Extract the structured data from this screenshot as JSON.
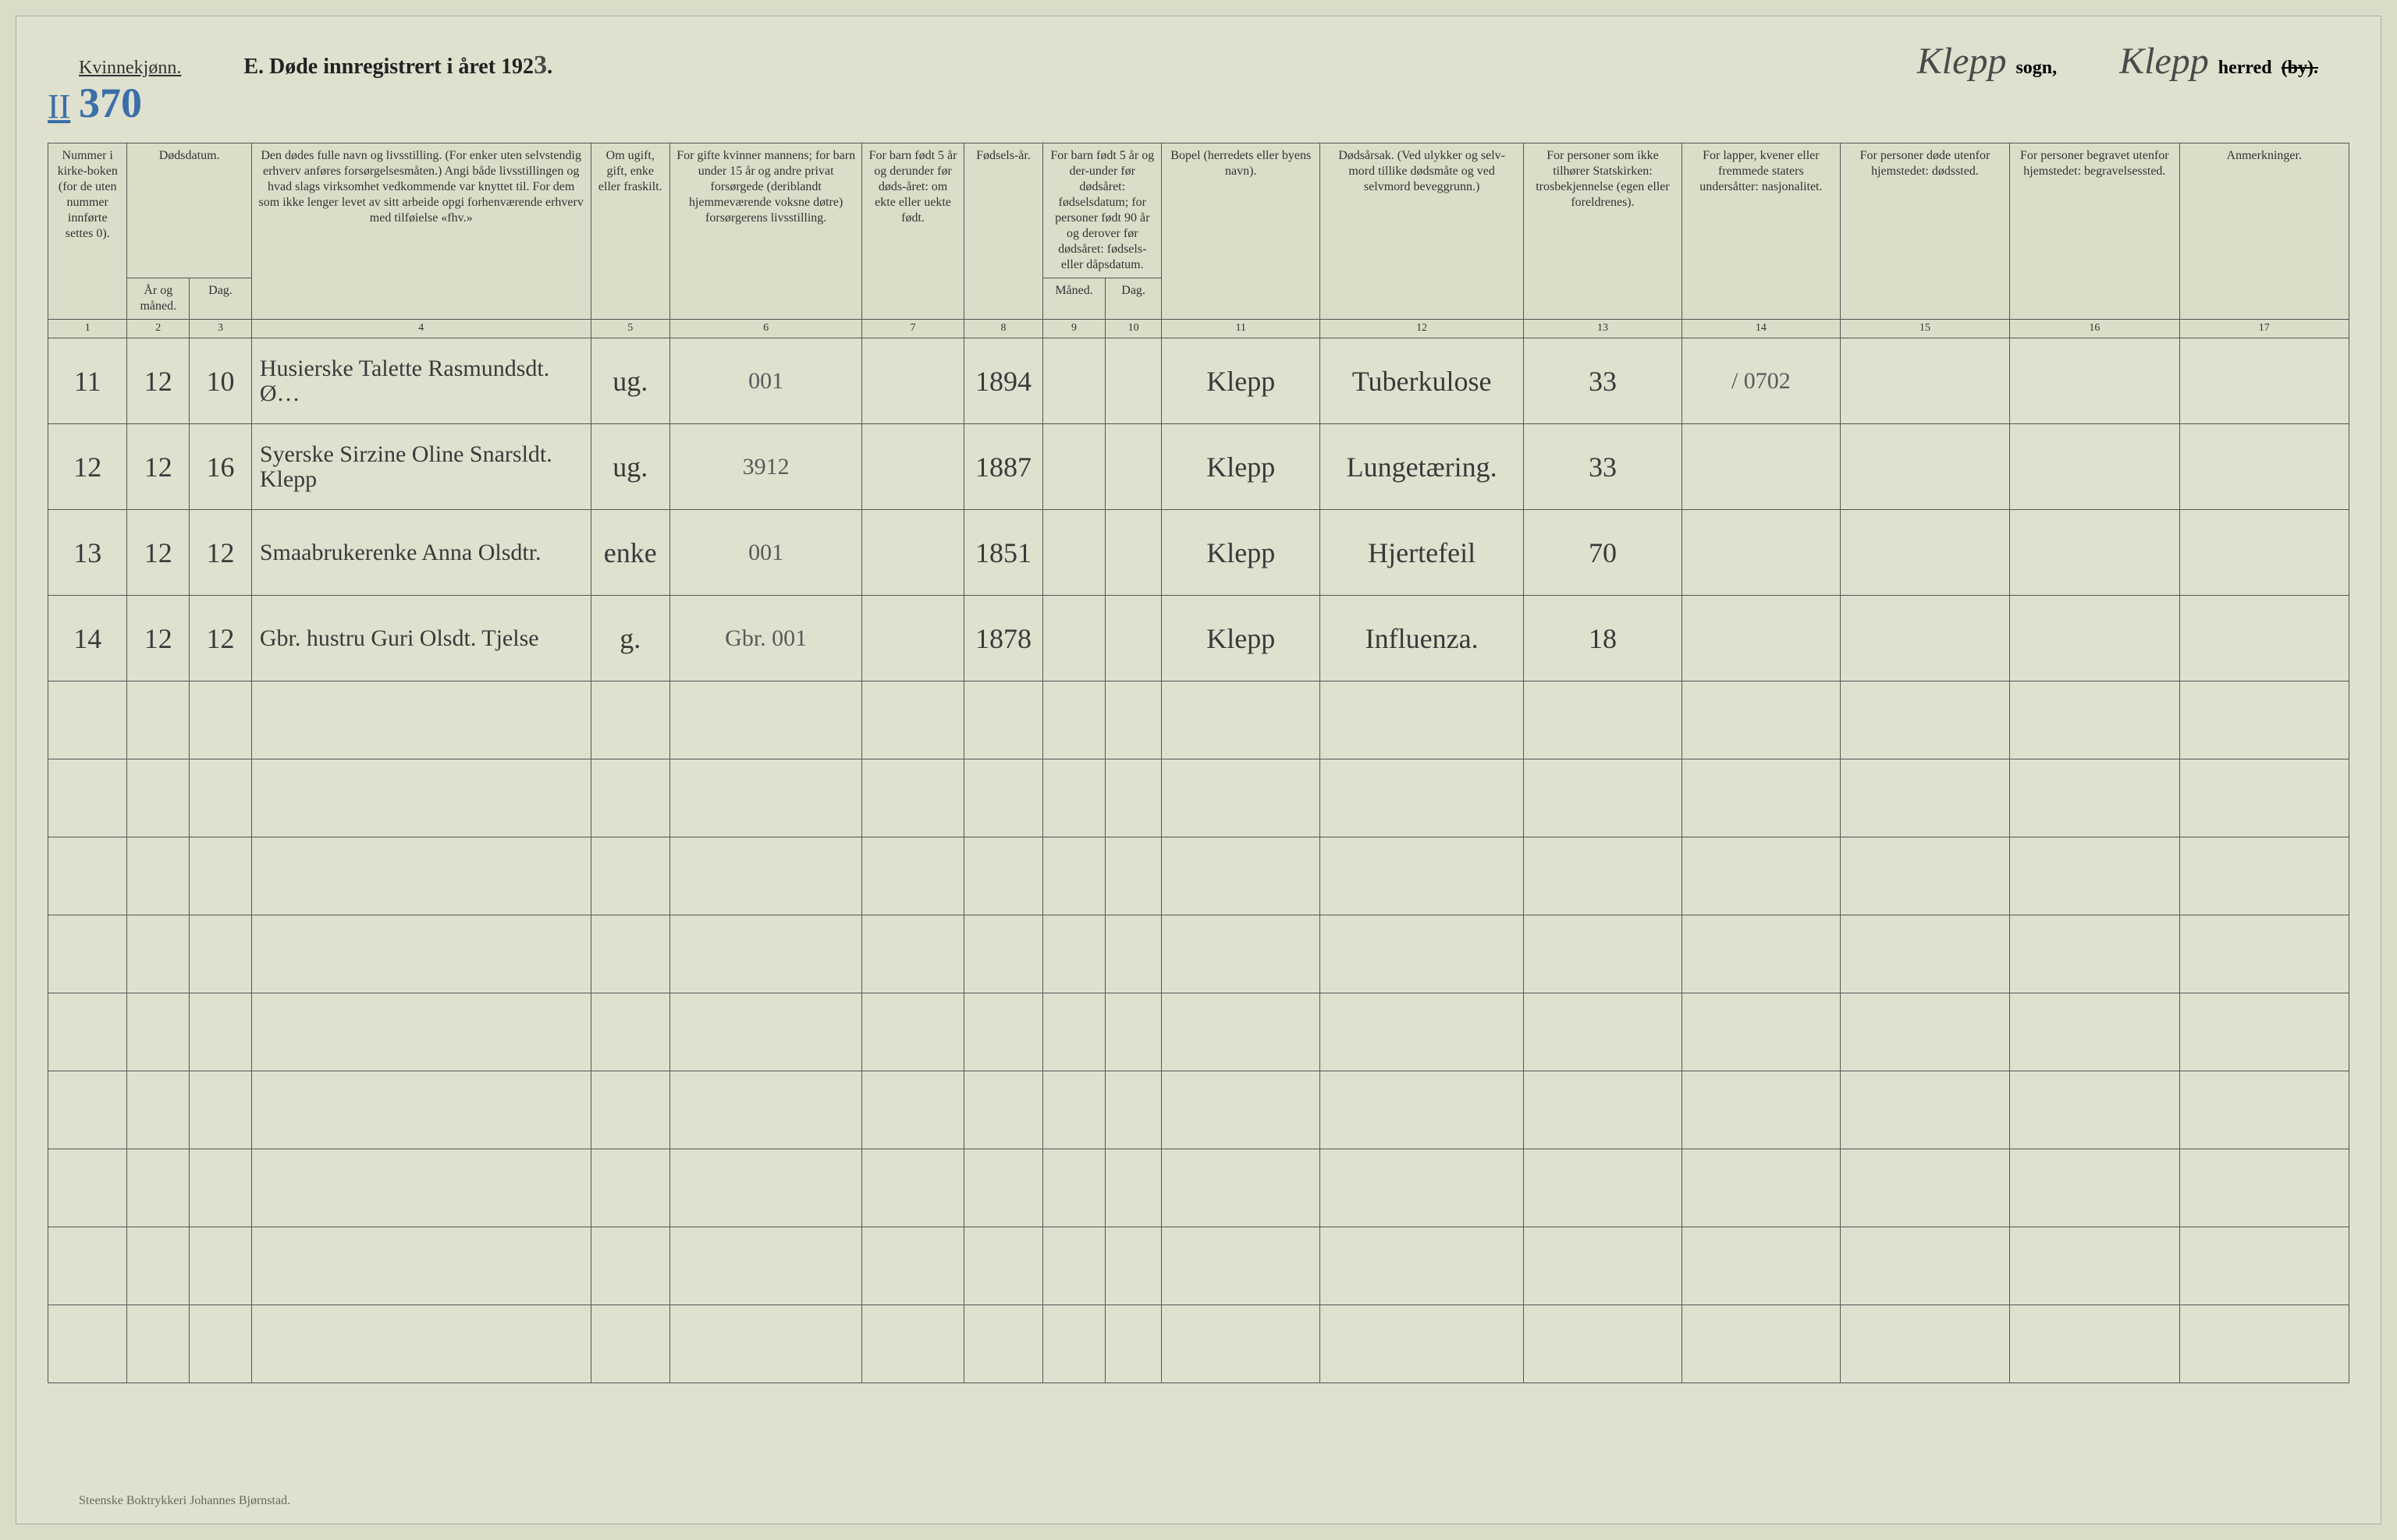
{
  "header": {
    "kvinnekjonn": "Kvinnekjønn.",
    "roman": "II",
    "page_number": "370",
    "title_prefix": "E.  Døde innregistrert i året 192",
    "year_digit": "3",
    "title_suffix": ".",
    "sogn_hw": "Klepp",
    "sogn_label": "sogn,",
    "herred_hw": "Klepp",
    "herred_label": "herred",
    "herred_strike": "(by)."
  },
  "columns": {
    "c1": "Nummer i kirke-boken (for de uten nummer innførte settes 0).",
    "c2_top": "Dødsdatum.",
    "c2": "År og måned.",
    "c3": "Dag.",
    "c4": "Den dødes fulle navn og livsstilling. (For enker uten selvstendig erhverv anføres forsørgelsesmåten.) Angi både livsstillingen og hvad slags virksomhet vedkommende var knyttet til. For dem som ikke lenger levet av sitt arbeide opgi forhenværende erhverv med tilføielse «fhv.»",
    "c5": "Om ugift, gift, enke eller fraskilt.",
    "c6": "For gifte kvinner mannens; for barn under 15 år og andre privat forsørgede (deriblandt hjemmeværende voksne døtre) forsørgerens livsstilling.",
    "c7": "For barn født 5 år og derunder før døds-året: om ekte eller uekte født.",
    "c8": "Fødsels-år.",
    "c9_top": "For barn født 5 år og der-under før dødsåret: fødselsdatum; for personer født 90 år og derover før dødsåret: fødsels- eller dåpsdatum.",
    "c9": "Måned.",
    "c10": "Dag.",
    "c11": "Bopel (herredets eller byens navn).",
    "c12": "Dødsårsak. (Ved ulykker og selv-mord tillike dødsmåte og ved selvmord beveggrunn.)",
    "c13": "For personer som ikke tilhører Statskirken: trosbekjennelse (egen eller foreldrenes).",
    "c14": "For lapper, kvener eller fremmede staters undersåtter: nasjonalitet.",
    "c15": "For personer døde utenfor hjemstedet: dødssted.",
    "c16": "For personer begravet utenfor hjemstedet: begravelsessted.",
    "c17": "Anmerkninger."
  },
  "colnums": [
    "1",
    "2",
    "3",
    "4",
    "5",
    "6",
    "7",
    "8",
    "9",
    "10",
    "11",
    "12",
    "13",
    "14",
    "15",
    "16",
    "17"
  ],
  "rows": [
    {
      "num": "11",
      "mon": "12",
      "day": "10",
      "name": "Husierske Talette Rasmundsdt. Ø…",
      "stat": "ug.",
      "fors": "001",
      "ekte": "",
      "fods": "1894",
      "m": "",
      "d": "",
      "bopel": "Klepp",
      "dod": "Tuberkulose",
      "tro": "33",
      "nasj": "/ 0702",
      "dsted": "",
      "bsted": "",
      "anm": ""
    },
    {
      "num": "12",
      "mon": "12",
      "day": "16",
      "name": "Syerske Sirzine Oline Snarsldt. Klepp",
      "stat": "ug.",
      "fors": "3912",
      "ekte": "",
      "fods": "1887",
      "m": "",
      "d": "",
      "bopel": "Klepp",
      "dod": "Lungetæring.",
      "tro": "33",
      "nasj": "",
      "dsted": "",
      "bsted": "",
      "anm": ""
    },
    {
      "num": "13",
      "mon": "12",
      "day": "12",
      "name": "Smaabrukerenke Anna Olsdtr.",
      "stat": "enke",
      "fors": "001",
      "ekte": "",
      "fods": "1851",
      "m": "",
      "d": "",
      "bopel": "Klepp",
      "dod": "Hjertefeil",
      "tro": "70",
      "nasj": "",
      "dsted": "",
      "bsted": "",
      "anm": ""
    },
    {
      "num": "14",
      "mon": "12",
      "day": "12",
      "name": "Gbr. hustru Guri Olsdt. Tjelse",
      "stat": "g.",
      "fors": "Gbr. 001",
      "ekte": "",
      "fods": "1878",
      "m": "",
      "d": "",
      "bopel": "Klepp",
      "dod": "Influenza.",
      "tro": "18",
      "nasj": "",
      "dsted": "",
      "bsted": "",
      "anm": ""
    }
  ],
  "empty_rows": 9,
  "footer": "Steenske Boktrykkeri Johannes Bjørnstad.",
  "colors": {
    "page_bg": "#dfe0ce",
    "body_bg": "#dadcc8",
    "border": "#555555",
    "text": "#333333",
    "hw_blue": "#3a6fa8",
    "hw_ink": "#3a3a3a"
  }
}
